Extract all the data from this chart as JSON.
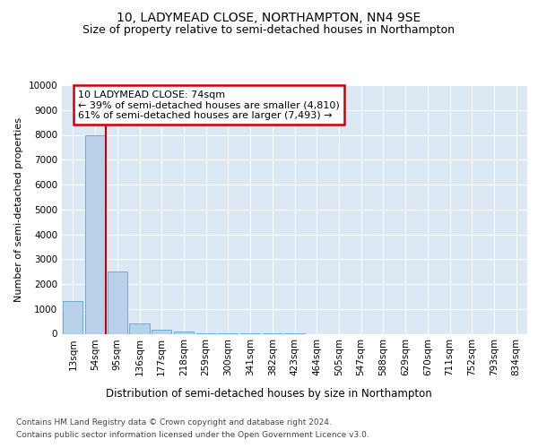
{
  "title": "10, LADYMEAD CLOSE, NORTHAMPTON, NN4 9SE",
  "subtitle": "Size of property relative to semi-detached houses in Northampton",
  "xlabel": "Distribution of semi-detached houses by size in Northampton",
  "ylabel": "Number of semi-detached properties",
  "footer1": "Contains HM Land Registry data © Crown copyright and database right 2024.",
  "footer2": "Contains public sector information licensed under the Open Government Licence v3.0.",
  "categories": [
    "13sqm",
    "54sqm",
    "95sqm",
    "136sqm",
    "177sqm",
    "218sqm",
    "259sqm",
    "300sqm",
    "341sqm",
    "382sqm",
    "423sqm",
    "464sqm",
    "505sqm",
    "547sqm",
    "588sqm",
    "629sqm",
    "670sqm",
    "711sqm",
    "752sqm",
    "793sqm",
    "834sqm"
  ],
  "values": [
    1300,
    8000,
    2500,
    400,
    175,
    100,
    8,
    5,
    2,
    1,
    1,
    0,
    0,
    0,
    0,
    0,
    0,
    0,
    0,
    0,
    0
  ],
  "bar_color": "#b8d0e8",
  "bar_edge_color": "#6aaed6",
  "vline_color": "#cc0000",
  "vline_x_idx": 2,
  "annotation_text_line1": "10 LADYMEAD CLOSE: 74sqm",
  "annotation_text_line2": "← 39% of semi-detached houses are smaller (4,810)",
  "annotation_text_line3": "61% of semi-detached houses are larger (7,493) →",
  "annotation_box_color": "#cc0000",
  "ylim": [
    0,
    10000
  ],
  "yticks": [
    0,
    1000,
    2000,
    3000,
    4000,
    5000,
    6000,
    7000,
    8000,
    9000,
    10000
  ],
  "bg_color": "#dce9f5",
  "grid_color": "#ffffff",
  "title_fontsize": 10,
  "subtitle_fontsize": 9,
  "ylabel_fontsize": 8,
  "xlabel_fontsize": 8.5,
  "tick_fontsize": 7.5,
  "footer_fontsize": 6.5
}
